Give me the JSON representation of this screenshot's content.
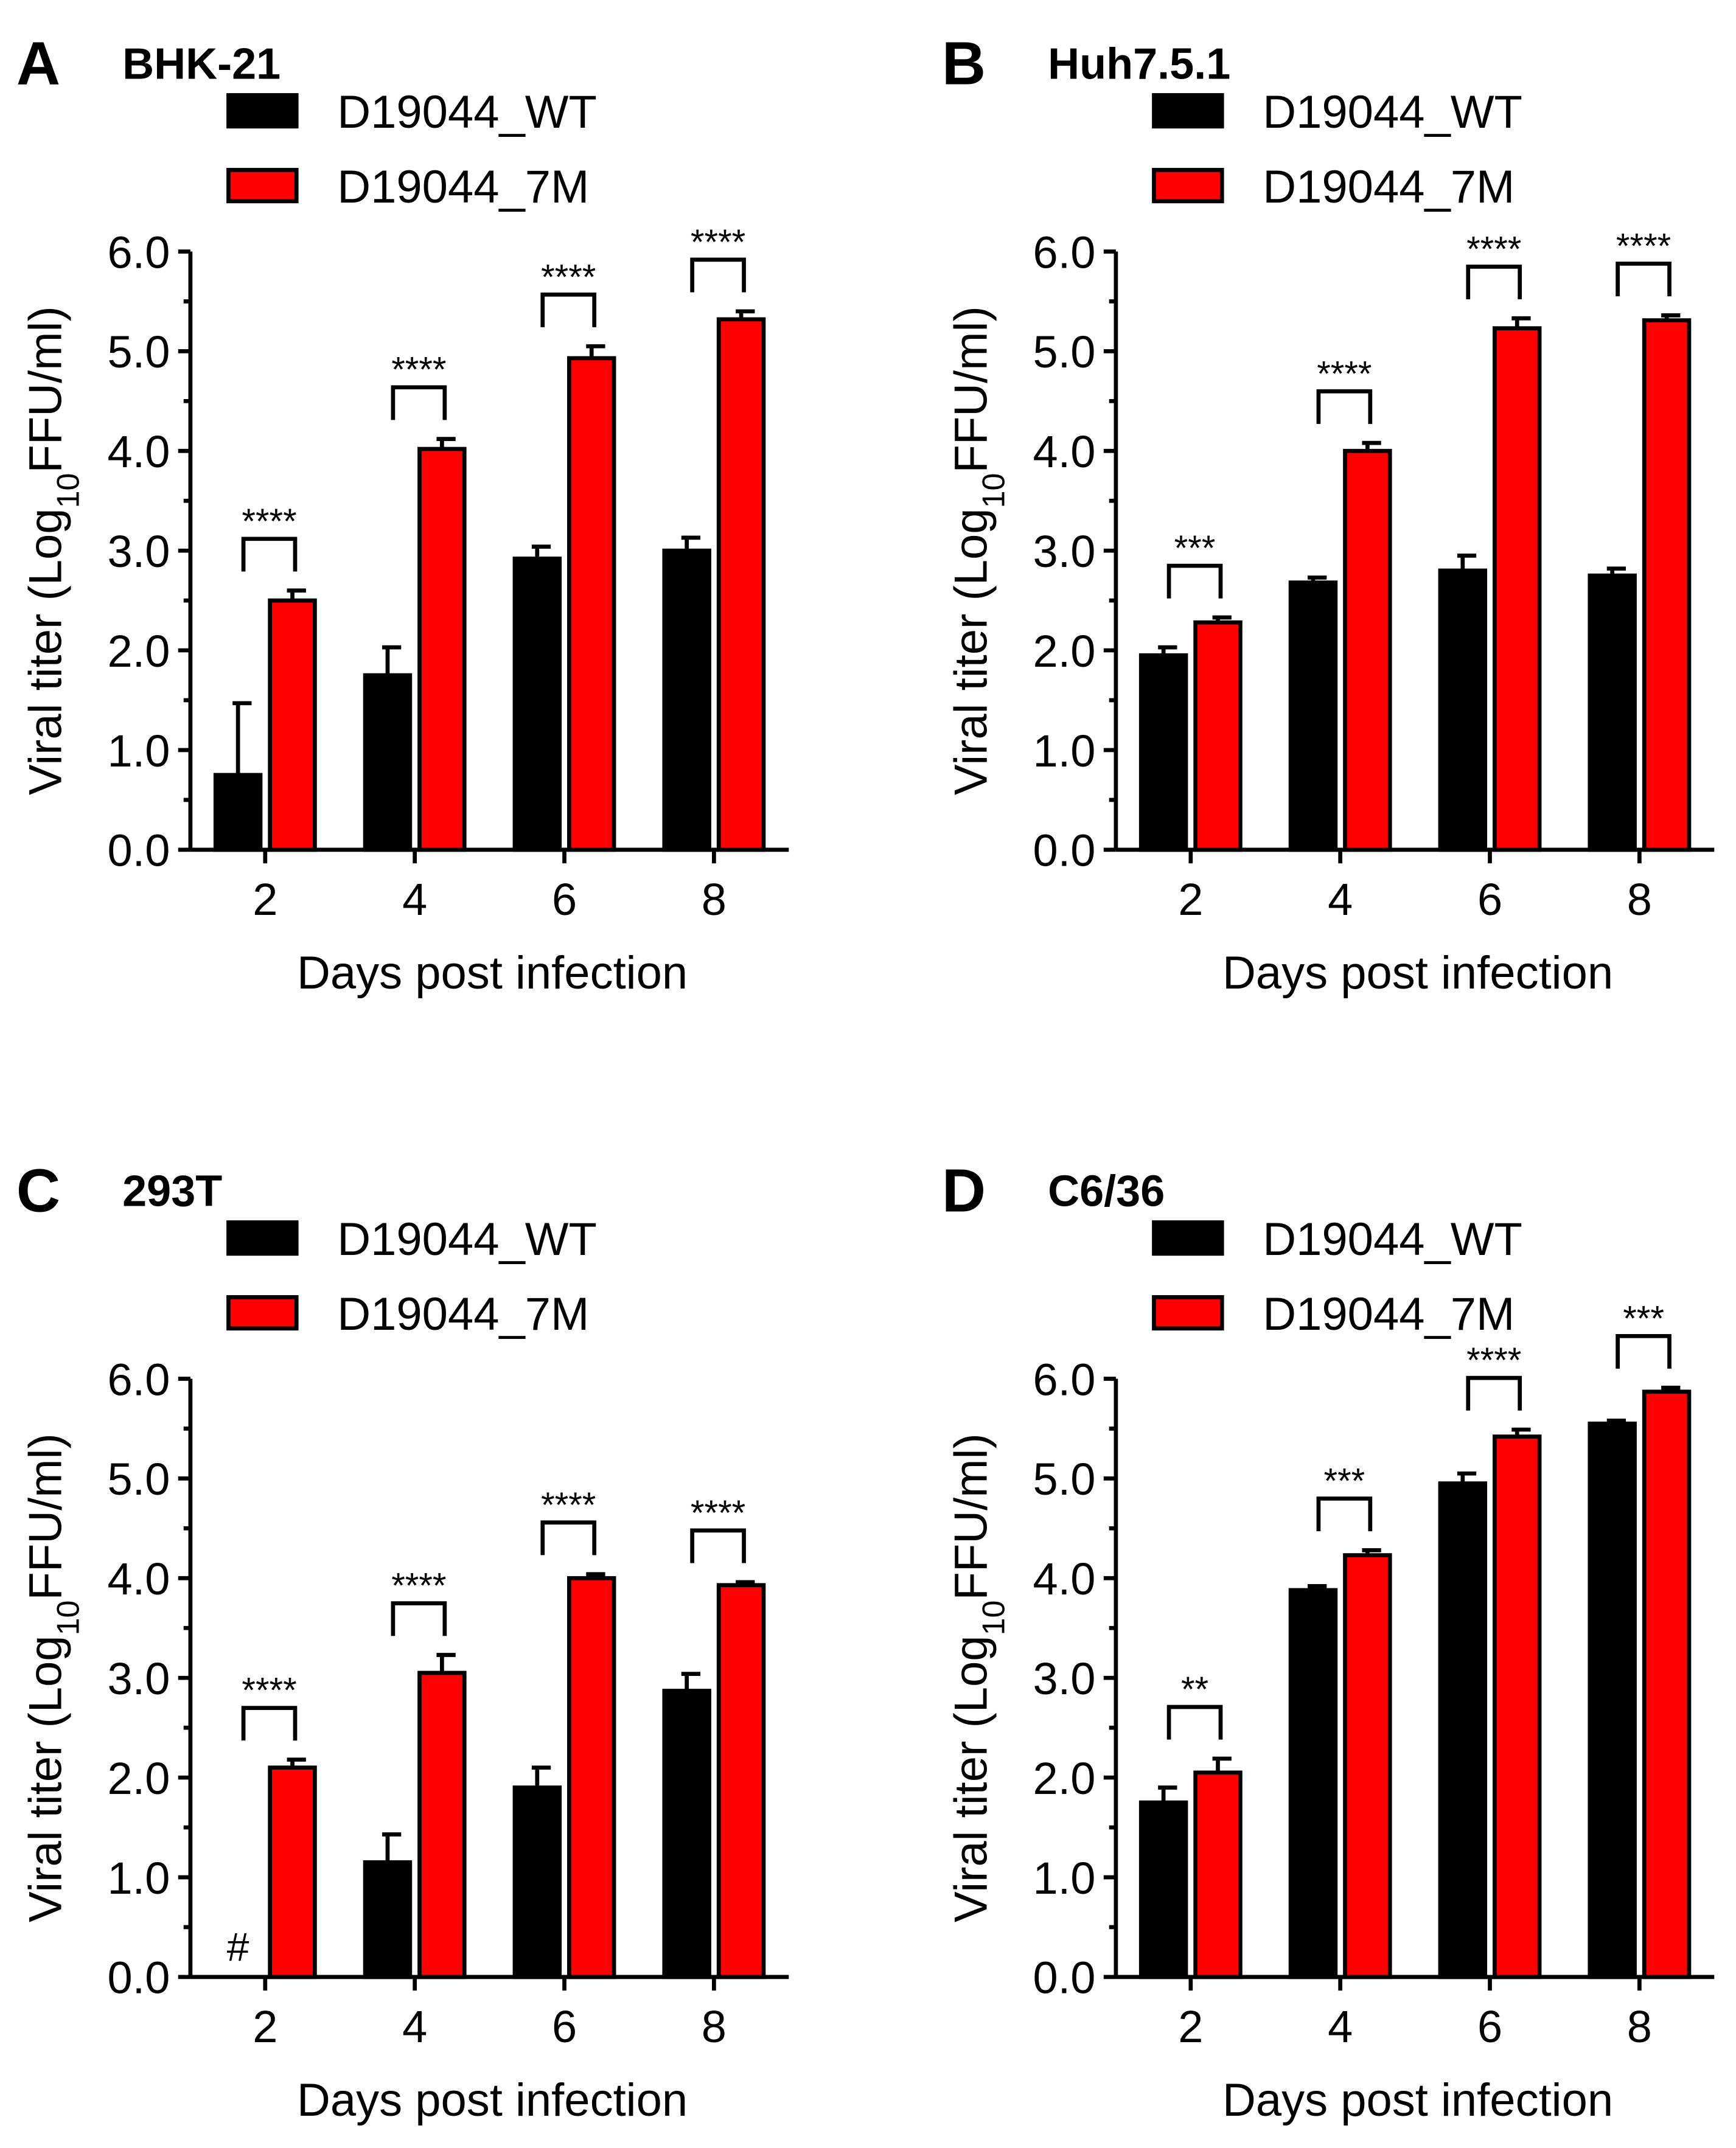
{
  "figure": {
    "series_colors": {
      "D19044_WT": "#000000",
      "D19044_7M": "#ff0000"
    }
  },
  "chart_data": [
    {
      "type": "bar",
      "panel": "A",
      "title": "BHK-21",
      "xlabel": "Days post infection",
      "ylabel": "Viral titer (Log10FFU/ml)",
      "ylim": [
        0,
        6
      ],
      "yticks": [
        "0.0",
        "1.0",
        "2.0",
        "3.0",
        "4.0",
        "5.0",
        "6.0"
      ],
      "categories": [
        "2",
        "4",
        "6",
        "8"
      ],
      "series": [
        {
          "name": "D19044_WT",
          "color": "#000000",
          "values": [
            0.75,
            1.75,
            2.92,
            3.0
          ],
          "errors": [
            0.72,
            0.28,
            0.12,
            0.13
          ]
        },
        {
          "name": "D19044_7M",
          "color": "#ff0000",
          "values": [
            2.5,
            4.02,
            4.93,
            5.32
          ],
          "errors": [
            0.1,
            0.1,
            0.12,
            0.08
          ]
        }
      ],
      "significance": [
        "****",
        "****",
        "****",
        "****"
      ],
      "annotations": []
    },
    {
      "type": "bar",
      "panel": "B",
      "title": "Huh7.5.1",
      "xlabel": "Days post infection",
      "ylabel": "Viral titer (Log10FFU/ml)",
      "ylim": [
        0,
        6
      ],
      "yticks": [
        "0.0",
        "1.0",
        "2.0",
        "3.0",
        "4.0",
        "5.0",
        "6.0"
      ],
      "categories": [
        "2",
        "4",
        "6",
        "8"
      ],
      "series": [
        {
          "name": "D19044_WT",
          "color": "#000000",
          "values": [
            1.95,
            2.68,
            2.8,
            2.75
          ],
          "errors": [
            0.08,
            0.05,
            0.15,
            0.07
          ]
        },
        {
          "name": "D19044_7M",
          "color": "#ff0000",
          "values": [
            2.28,
            4.0,
            5.23,
            5.31
          ],
          "errors": [
            0.05,
            0.08,
            0.1,
            0.05
          ]
        }
      ],
      "significance": [
        "***",
        "****",
        "****",
        "****"
      ],
      "annotations": []
    },
    {
      "type": "bar",
      "panel": "C",
      "title": "293T",
      "xlabel": "Days post infection",
      "ylabel": "Viral titer (Log10FFU/ml)",
      "ylim": [
        0,
        6
      ],
      "yticks": [
        "0.0",
        "1.0",
        "2.0",
        "3.0",
        "4.0",
        "5.0",
        "6.0"
      ],
      "categories": [
        "2",
        "4",
        "6",
        "8"
      ],
      "series": [
        {
          "name": "D19044_WT",
          "color": "#000000",
          "values": [
            0,
            1.15,
            1.9,
            2.87
          ],
          "errors": [
            0,
            0.28,
            0.2,
            0.17
          ]
        },
        {
          "name": "D19044_7M",
          "color": "#ff0000",
          "values": [
            2.1,
            3.05,
            4.0,
            3.93
          ],
          "errors": [
            0.08,
            0.18,
            0.04,
            0.03
          ]
        }
      ],
      "significance": [
        "****",
        "****",
        "****",
        "****"
      ],
      "annotations": [
        {
          "category": "2",
          "series": "D19044_WT",
          "text": "#"
        }
      ]
    },
    {
      "type": "bar",
      "panel": "D",
      "title": "C6/36",
      "xlabel": "Days post infection",
      "ylabel": "Viral titer (Log10FFU/ml)",
      "ylim": [
        0,
        6
      ],
      "yticks": [
        "0.0",
        "1.0",
        "2.0",
        "3.0",
        "4.0",
        "5.0",
        "6.0"
      ],
      "categories": [
        "2",
        "4",
        "6",
        "8"
      ],
      "series": [
        {
          "name": "D19044_WT",
          "color": "#000000",
          "values": [
            1.75,
            3.88,
            4.95,
            5.55
          ],
          "errors": [
            0.15,
            0.04,
            0.1,
            0.03
          ]
        },
        {
          "name": "D19044_7M",
          "color": "#ff0000",
          "values": [
            2.05,
            4.23,
            5.42,
            5.87
          ],
          "errors": [
            0.14,
            0.05,
            0.07,
            0.04
          ]
        }
      ],
      "significance": [
        "**",
        "***",
        "****",
        "***"
      ],
      "annotations": []
    }
  ]
}
